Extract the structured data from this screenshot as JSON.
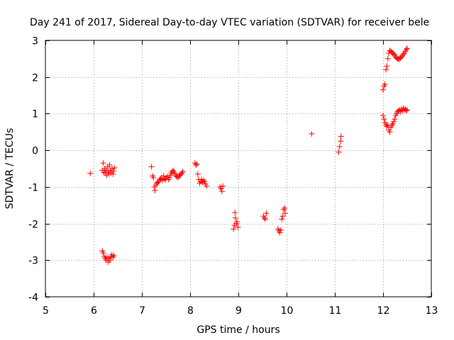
{
  "chart_data": {
    "type": "scatter",
    "title": "Day 241 of 2017, Sidereal Day-to-day VTEC variation (SDTVAR) for receiver bele",
    "xlabel": "GPS time / hours",
    "ylabel": "SDTVAR / TECUs",
    "xlim": [
      5,
      13
    ],
    "ylim": [
      -4,
      3
    ],
    "x_ticks": [
      5,
      6,
      7,
      8,
      9,
      10,
      11,
      12,
      13
    ],
    "y_ticks": [
      -4,
      -3,
      -2,
      -1,
      0,
      1,
      2,
      3
    ],
    "grid": true,
    "marker": "+",
    "color": "#ff0000",
    "series": [
      {
        "name": "SDTVAR",
        "points": [
          [
            5.93,
            -0.63
          ],
          [
            6.18,
            -0.55
          ],
          [
            6.2,
            -0.35
          ],
          [
            6.21,
            -0.6
          ],
          [
            6.23,
            -0.5
          ],
          [
            6.24,
            -0.62
          ],
          [
            6.26,
            -0.55
          ],
          [
            6.27,
            -0.68
          ],
          [
            6.29,
            -0.45
          ],
          [
            6.3,
            -0.58
          ],
          [
            6.32,
            -0.65
          ],
          [
            6.33,
            -0.4
          ],
          [
            6.35,
            -0.55
          ],
          [
            6.36,
            -0.62
          ],
          [
            6.38,
            -0.5
          ],
          [
            6.4,
            -0.65
          ],
          [
            6.41,
            -0.58
          ],
          [
            6.43,
            -0.48
          ],
          [
            6.18,
            -2.75
          ],
          [
            6.2,
            -2.8
          ],
          [
            6.22,
            -2.9
          ],
          [
            6.24,
            -2.95
          ],
          [
            6.26,
            -3.0
          ],
          [
            6.28,
            -2.92
          ],
          [
            6.3,
            -3.05
          ],
          [
            6.32,
            -2.95
          ],
          [
            6.34,
            -3.0
          ],
          [
            6.36,
            -2.9
          ],
          [
            6.38,
            -2.85
          ],
          [
            6.4,
            -2.92
          ],
          [
            6.42,
            -2.88
          ],
          [
            7.2,
            -0.45
          ],
          [
            7.22,
            -0.7
          ],
          [
            7.24,
            -0.75
          ],
          [
            7.26,
            -1.0
          ],
          [
            7.27,
            -1.1
          ],
          [
            7.29,
            -0.95
          ],
          [
            7.31,
            -0.9
          ],
          [
            7.33,
            -0.88
          ],
          [
            7.35,
            -0.85
          ],
          [
            7.37,
            -0.8
          ],
          [
            7.39,
            -0.78
          ],
          [
            7.41,
            -0.75
          ],
          [
            7.43,
            -0.82
          ],
          [
            7.45,
            -0.7
          ],
          [
            7.47,
            -0.78
          ],
          [
            7.49,
            -0.8
          ],
          [
            7.51,
            -0.75
          ],
          [
            7.53,
            -0.72
          ],
          [
            7.55,
            -0.8
          ],
          [
            7.57,
            -0.75
          ],
          [
            7.59,
            -0.68
          ],
          [
            7.61,
            -0.62
          ],
          [
            7.63,
            -0.58
          ],
          [
            7.65,
            -0.55
          ],
          [
            7.67,
            -0.6
          ],
          [
            7.69,
            -0.65
          ],
          [
            7.71,
            -0.7
          ],
          [
            7.73,
            -0.72
          ],
          [
            7.75,
            -0.75
          ],
          [
            7.77,
            -0.7
          ],
          [
            7.79,
            -0.68
          ],
          [
            7.81,
            -0.65
          ],
          [
            7.83,
            -0.62
          ],
          [
            7.85,
            -0.58
          ],
          [
            8.1,
            -0.35
          ],
          [
            8.12,
            -0.4
          ],
          [
            8.14,
            -0.38
          ],
          [
            8.16,
            -0.65
          ],
          [
            8.18,
            -0.8
          ],
          [
            8.2,
            -0.9
          ],
          [
            8.22,
            -0.85
          ],
          [
            8.24,
            -0.8
          ],
          [
            8.26,
            -0.88
          ],
          [
            8.28,
            -0.82
          ],
          [
            8.3,
            -0.86
          ],
          [
            8.32,
            -0.92
          ],
          [
            8.34,
            -0.98
          ],
          [
            8.62,
            -1.0
          ],
          [
            8.64,
            -1.05
          ],
          [
            8.66,
            -1.12
          ],
          [
            8.68,
            -0.98
          ],
          [
            8.9,
            -2.15
          ],
          [
            8.92,
            -2.05
          ],
          [
            8.93,
            -1.7
          ],
          [
            8.94,
            -1.85
          ],
          [
            8.96,
            -2.0
          ],
          [
            8.97,
            -1.95
          ],
          [
            8.99,
            -2.1
          ],
          [
            9.52,
            -1.8
          ],
          [
            9.54,
            -1.85
          ],
          [
            9.56,
            -1.88
          ],
          [
            9.58,
            -1.72
          ],
          [
            9.82,
            -2.15
          ],
          [
            9.84,
            -2.2
          ],
          [
            9.86,
            -2.25
          ],
          [
            9.88,
            -2.18
          ],
          [
            9.9,
            -1.88
          ],
          [
            9.92,
            -1.8
          ],
          [
            9.94,
            -1.62
          ],
          [
            9.96,
            -1.58
          ],
          [
            9.97,
            -1.72
          ],
          [
            10.52,
            0.45
          ],
          [
            11.08,
            -0.05
          ],
          [
            11.1,
            0.1
          ],
          [
            11.12,
            0.25
          ],
          [
            11.13,
            0.38
          ],
          [
            12.0,
            1.65
          ],
          [
            12.02,
            1.75
          ],
          [
            12.04,
            1.8
          ],
          [
            12.06,
            2.2
          ],
          [
            12.08,
            2.3
          ],
          [
            12.1,
            2.5
          ],
          [
            12.12,
            2.65
          ],
          [
            12.14,
            2.72
          ],
          [
            12.16,
            2.7
          ],
          [
            12.18,
            2.68
          ],
          [
            12.2,
            2.65
          ],
          [
            12.22,
            2.62
          ],
          [
            12.24,
            2.6
          ],
          [
            12.26,
            2.55
          ],
          [
            12.28,
            2.52
          ],
          [
            12.3,
            2.5
          ],
          [
            12.32,
            2.48
          ],
          [
            12.34,
            2.5
          ],
          [
            12.36,
            2.52
          ],
          [
            12.38,
            2.55
          ],
          [
            12.4,
            2.58
          ],
          [
            12.42,
            2.62
          ],
          [
            12.44,
            2.65
          ],
          [
            12.46,
            2.7
          ],
          [
            12.48,
            2.75
          ],
          [
            12.5,
            2.78
          ],
          [
            12.0,
            0.95
          ],
          [
            12.02,
            0.85
          ],
          [
            12.04,
            0.75
          ],
          [
            12.06,
            0.7
          ],
          [
            12.08,
            0.65
          ],
          [
            12.1,
            0.68
          ],
          [
            12.12,
            0.55
          ],
          [
            12.14,
            0.5
          ],
          [
            12.16,
            0.62
          ],
          [
            12.18,
            0.68
          ],
          [
            12.2,
            0.72
          ],
          [
            12.22,
            0.78
          ],
          [
            12.24,
            0.85
          ],
          [
            12.26,
            0.95
          ],
          [
            12.28,
            1.0
          ],
          [
            12.3,
            1.05
          ],
          [
            12.32,
            1.08
          ],
          [
            12.34,
            1.1
          ],
          [
            12.36,
            1.05
          ],
          [
            12.38,
            1.12
          ],
          [
            12.4,
            1.08
          ],
          [
            12.42,
            1.15
          ],
          [
            12.44,
            1.1
          ],
          [
            12.46,
            1.12
          ],
          [
            12.48,
            1.08
          ],
          [
            12.5,
            1.1
          ]
        ]
      }
    ]
  }
}
